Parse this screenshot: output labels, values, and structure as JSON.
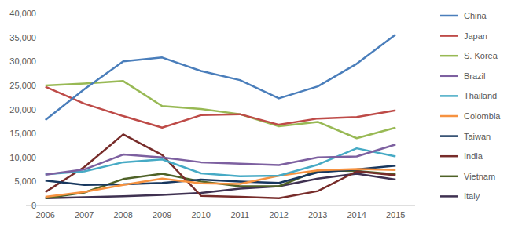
{
  "chart_data": {
    "type": "line",
    "categories": [
      "2006",
      "2007",
      "2008",
      "2009",
      "2010",
      "2011",
      "2012",
      "2013",
      "2014",
      "2015"
    ],
    "series": [
      {
        "name": "China",
        "color": "#4a7ebb",
        "values": [
          17800,
          24200,
          30000,
          30800,
          28000,
          26100,
          22300,
          24800,
          29500,
          35600
        ]
      },
      {
        "name": "Japan",
        "color": "#be4b48",
        "values": [
          24700,
          21200,
          18600,
          16200,
          18800,
          19000,
          16800,
          18100,
          18400,
          19800
        ]
      },
      {
        "name": "S. Korea",
        "color": "#98b954",
        "values": [
          25000,
          25400,
          25900,
          20700,
          20100,
          19000,
          16500,
          17400,
          14000,
          16200
        ]
      },
      {
        "name": "Brazil",
        "color": "#7d60a0",
        "values": [
          6400,
          7500,
          10600,
          10000,
          9000,
          8700,
          8400,
          10000,
          10200,
          12700
        ]
      },
      {
        "name": "Thailand",
        "color": "#46aac5",
        "values": [
          6500,
          7100,
          9000,
          9600,
          6700,
          6100,
          6200,
          8500,
          11900,
          10200
        ]
      },
      {
        "name": "Colombia",
        "color": "#f69240",
        "values": [
          1800,
          2800,
          4300,
          5600,
          4600,
          4500,
          6200,
          7300,
          7600,
          7400
        ]
      },
      {
        "name": "Taiwan",
        "color": "#17375e",
        "values": [
          5200,
          4300,
          4400,
          4700,
          5400,
          5000,
          4700,
          6900,
          7500,
          8300
        ]
      },
      {
        "name": "India",
        "color": "#772c2a",
        "values": [
          2800,
          8000,
          14800,
          10500,
          2000,
          1800,
          1500,
          3000,
          7100,
          6300
        ]
      },
      {
        "name": "Vietnam",
        "color": "#4f6228",
        "values": [
          1500,
          2700,
          5500,
          6600,
          5000,
          4000,
          4000,
          7300,
          7200,
          6500
        ]
      },
      {
        "name": "Italy",
        "color": "#3f3151",
        "values": [
          1500,
          1700,
          1900,
          2200,
          2600,
          3500,
          4000,
          5600,
          6600,
          5400
        ]
      }
    ],
    "ylim": [
      0,
      40000
    ],
    "yticks": [
      0,
      {
        "value": 5000,
        "label": "5,000"
      },
      {
        "value": 10000,
        "label": "10,000"
      },
      {
        "value": 15000,
        "label": "15,000"
      },
      {
        "value": 20000,
        "label": "20,000"
      },
      {
        "value": 25000,
        "label": "25,000"
      },
      {
        "value": 30000,
        "label": "30,000"
      },
      {
        "value": 35000,
        "label": "35,000"
      },
      {
        "value": 40000,
        "label": "40,000"
      }
    ],
    "grid": false,
    "legend": "right"
  }
}
